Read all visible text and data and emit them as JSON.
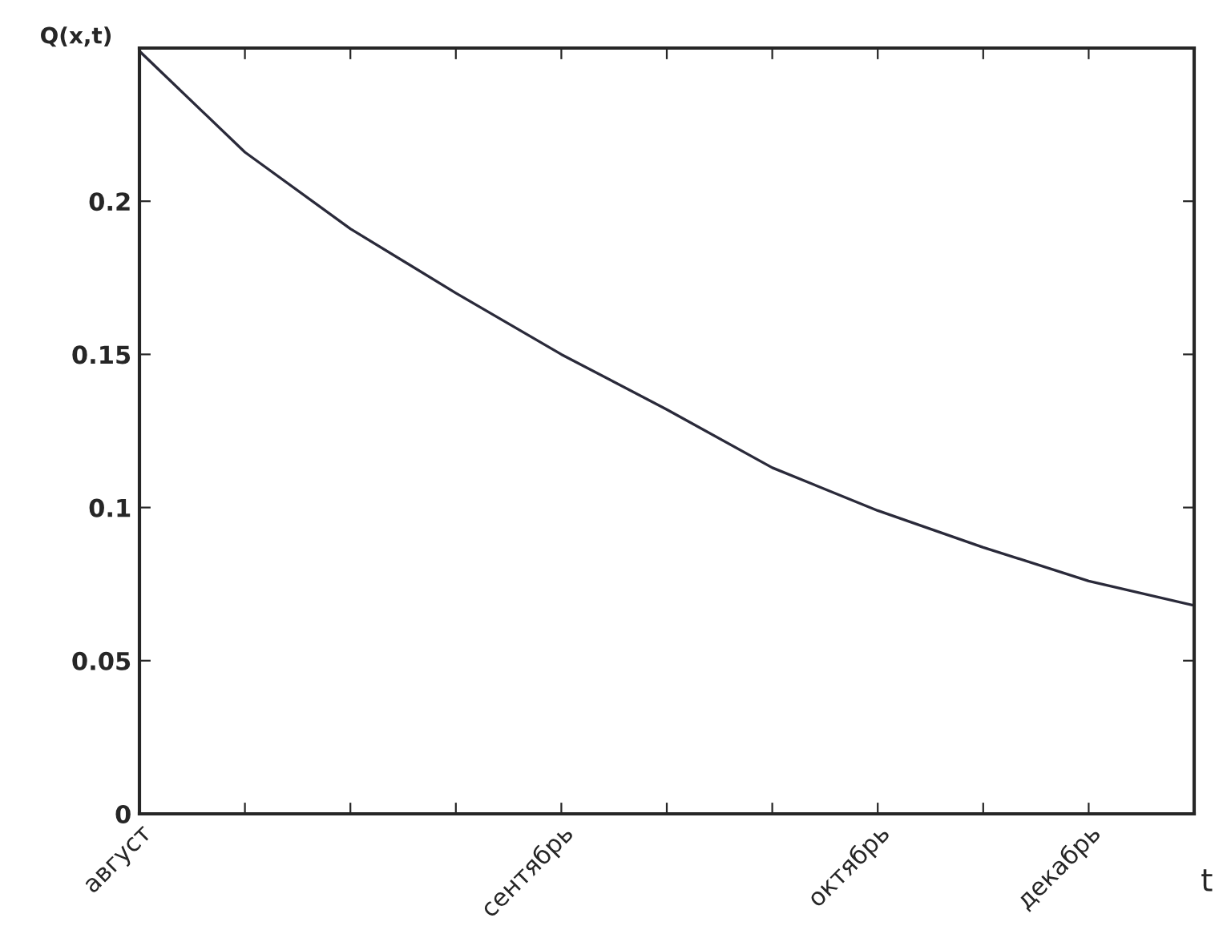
{
  "chart_data": {
    "type": "line",
    "xlabel": "t",
    "ylabel": "Q(x,t)",
    "categories": [
      "август",
      null,
      null,
      null,
      "сентябрь",
      null,
      null,
      "октябрь",
      null,
      "декабрь",
      null
    ],
    "series": [
      {
        "color": "#2a2a3a",
        "values": [
          0.249,
          0.216,
          0.191,
          0.17,
          0.15,
          0.132,
          0.113,
          0.099,
          0.087,
          0.076,
          0.068
        ]
      }
    ],
    "ylim": [
      0,
      0.25
    ],
    "yticks": [
      0,
      0.05,
      0.1,
      0.15,
      0.2
    ],
    "grid": false,
    "legend": false,
    "marker": "none",
    "line_style": "solid"
  }
}
